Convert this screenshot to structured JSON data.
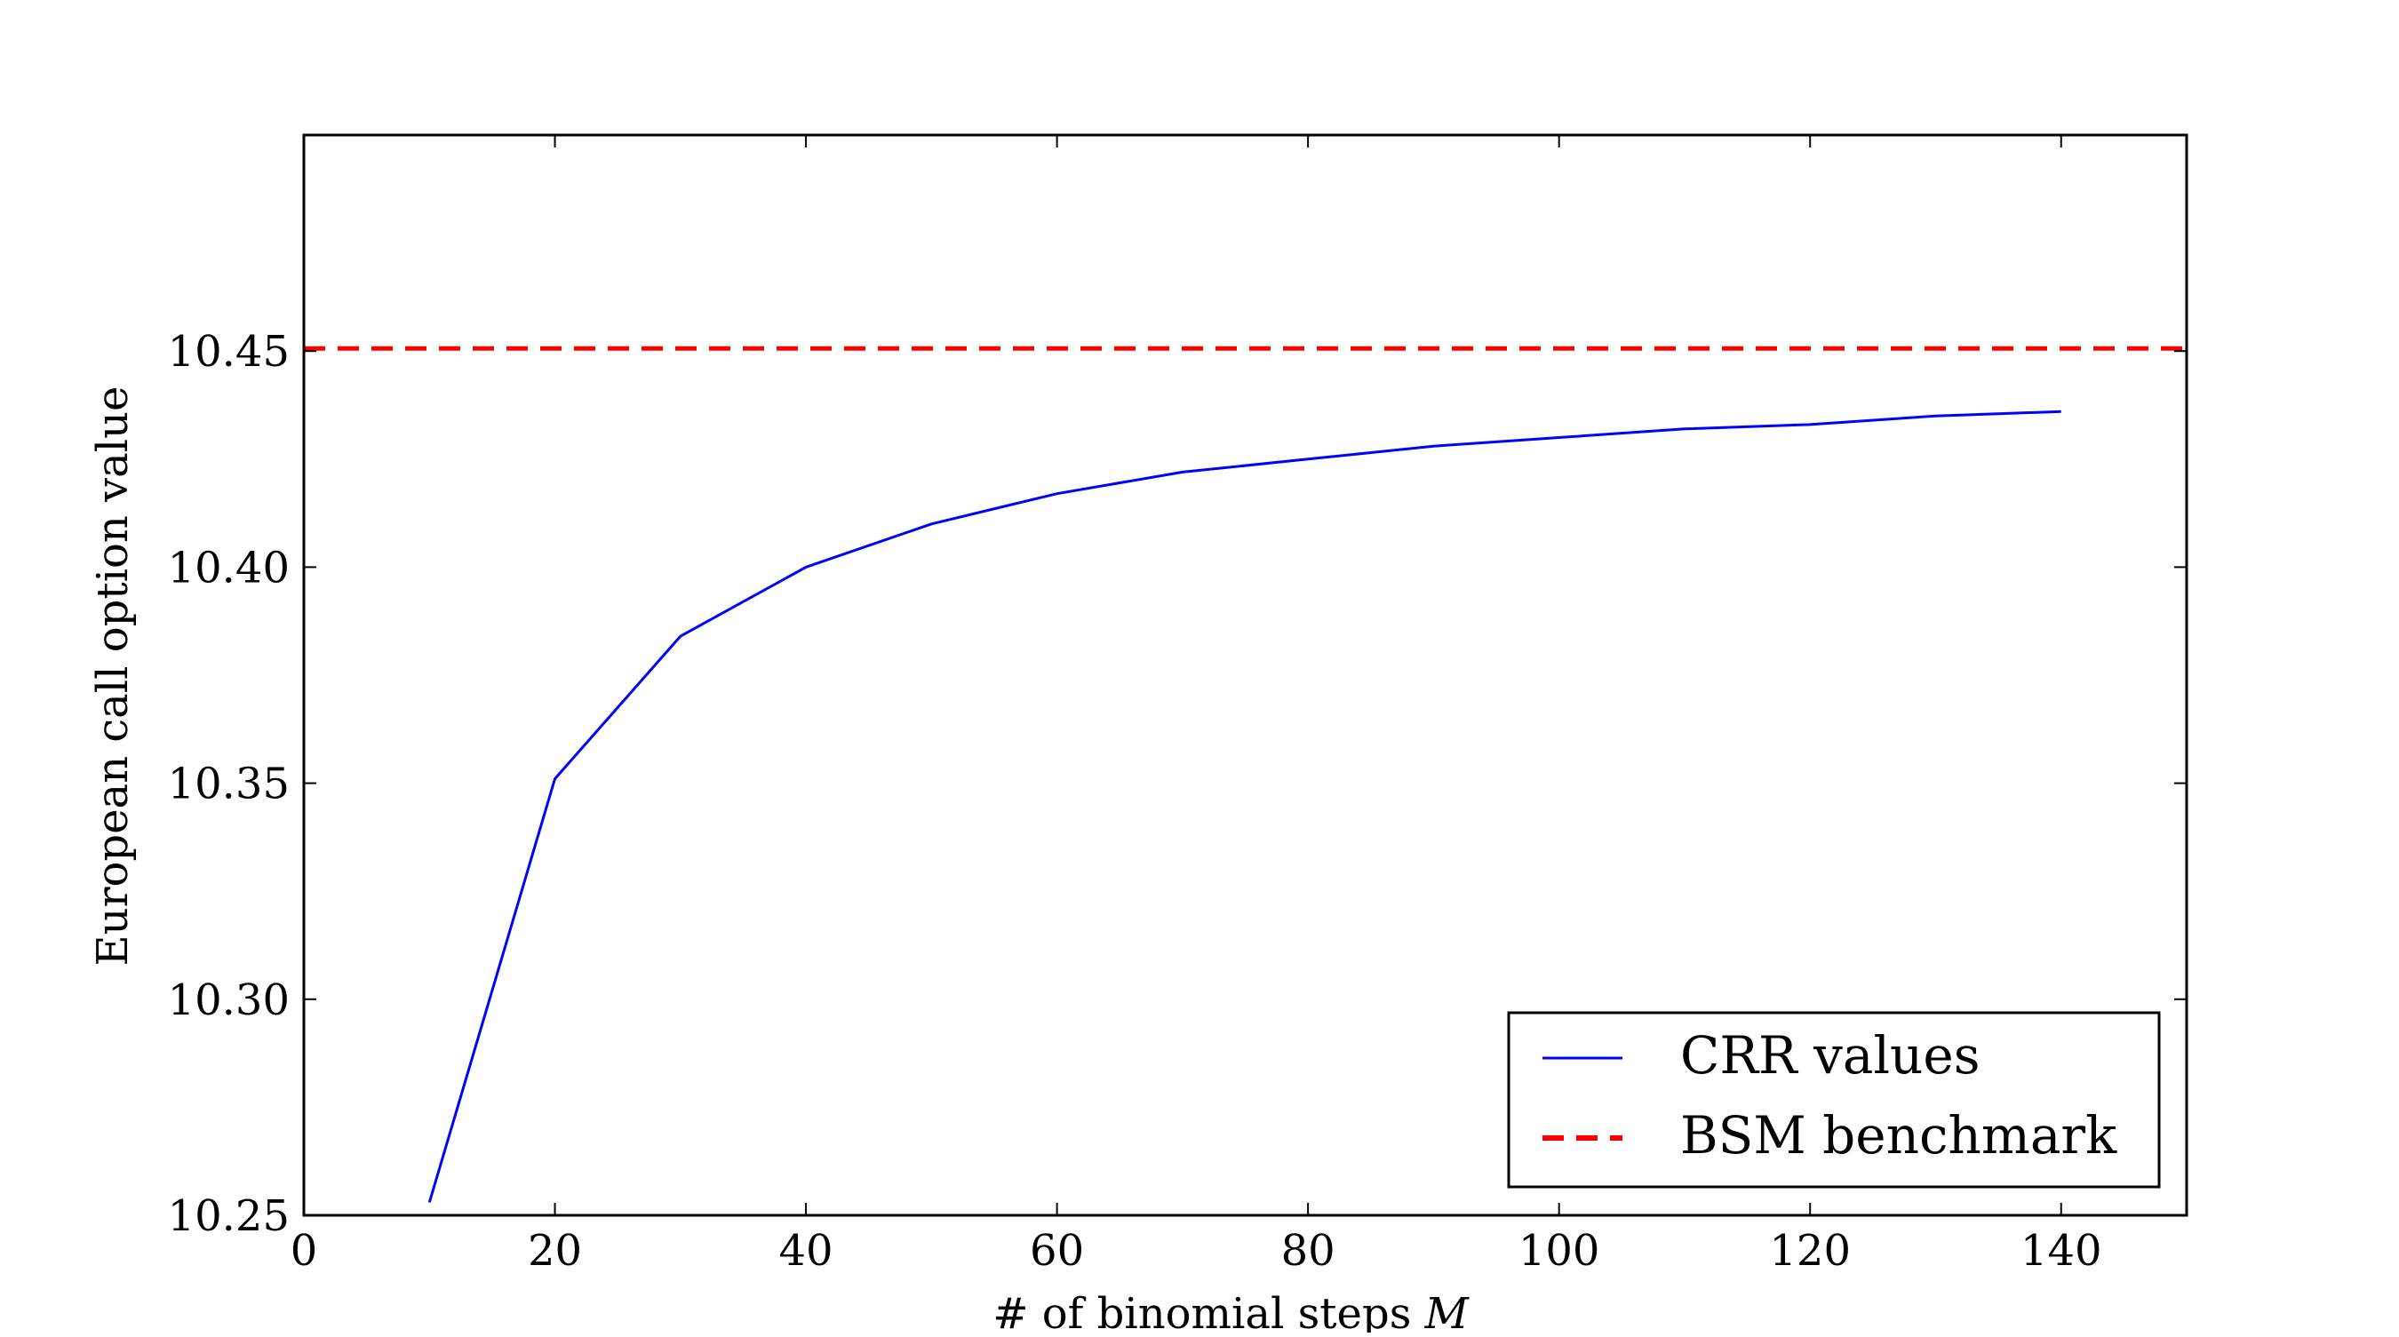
{
  "chart_data": {
    "type": "line",
    "title": "",
    "xlabel": "# of binomial steps",
    "xlabel_var": "M",
    "ylabel": "European call option value",
    "xlim": [
      0,
      150
    ],
    "ylim": [
      10.25,
      10.5
    ],
    "xticks": [
      0,
      20,
      40,
      60,
      80,
      100,
      120,
      140
    ],
    "yticks": [
      10.25,
      10.3,
      10.35,
      10.4,
      10.45
    ],
    "ytick_labels": [
      "10.25",
      "10.30",
      "10.35",
      "10.40",
      "10.45"
    ],
    "grid": false,
    "legend_position": "bottom-right",
    "series": [
      {
        "name": "CRR values",
        "color": "#0000ff",
        "style": "solid",
        "x": [
          10,
          20,
          30,
          40,
          50,
          60,
          70,
          80,
          90,
          100,
          110,
          120,
          130,
          140
        ],
        "values": [
          10.253,
          10.351,
          10.384,
          10.4,
          10.41,
          10.417,
          10.422,
          10.425,
          10.428,
          10.43,
          10.432,
          10.433,
          10.435,
          10.436
        ]
      },
      {
        "name": "BSM benchmark",
        "color": "#ff0000",
        "style": "dashed",
        "value": 10.4506
      }
    ]
  }
}
